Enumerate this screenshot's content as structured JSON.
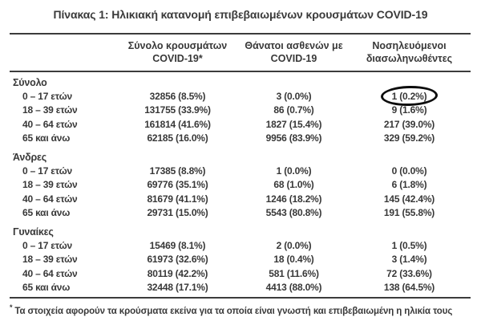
{
  "title": "Πίνακας 1: Ηλικιακή κατανομή επιβεβαιωμένων κρουσμάτων COVID-19",
  "table": {
    "columns": [
      {
        "line1": "Σύνολο κρουσμάτων",
        "line2": "COVID-19*"
      },
      {
        "line1": "Θάνατοι ασθενών με",
        "line2": "COVID-19"
      },
      {
        "line1": "Νοσηλευόμενοι",
        "line2": "διασωληνωθέντες"
      }
    ],
    "sections": [
      {
        "label": "Σύνολο",
        "rows": [
          {
            "age": "0 – 17 ετών",
            "cases": "32856 (8.5%)",
            "deaths": "3 (0.0%)",
            "intubated": "1 (0.2%)",
            "circled": true
          },
          {
            "age": "18 – 39 ετών",
            "cases": "131755 (33.9%)",
            "deaths": "86 (0.7%)",
            "intubated": "9 (1.6%)",
            "circled": false
          },
          {
            "age": "40 – 64 ετών",
            "cases": "161814 (41.6%)",
            "deaths": "1827 (15.4%)",
            "intubated": "217 (39.0%)",
            "circled": false
          },
          {
            "age": "65 και άνω",
            "cases": "62185 (16.0%)",
            "deaths": "9956 (83.9%)",
            "intubated": "329 (59.2%)",
            "circled": false
          }
        ]
      },
      {
        "label": "Άνδρες",
        "rows": [
          {
            "age": "0 – 17 ετών",
            "cases": "17385 (8.8%)",
            "deaths": "1 (0.0%)",
            "intubated": "0 (0.0%)",
            "circled": false
          },
          {
            "age": "18 – 39 ετών",
            "cases": "69776 (35.1%)",
            "deaths": "68 (1.0%)",
            "intubated": "6 (1.8%)",
            "circled": false
          },
          {
            "age": "40 – 64 ετών",
            "cases": "81679 (41.1%)",
            "deaths": "1246 (18.2%)",
            "intubated": "145 (42.4%)",
            "circled": false
          },
          {
            "age": "65 και άνω",
            "cases": "29731 (15.0%)",
            "deaths": "5543 (80.8%)",
            "intubated": "191 (55.8%)",
            "circled": false
          }
        ]
      },
      {
        "label": "Γυναίκες",
        "rows": [
          {
            "age": "0 – 17 ετών",
            "cases": "15469 (8.1%)",
            "deaths": "2 (0.0%)",
            "intubated": "1 (0.5%)",
            "circled": false
          },
          {
            "age": "18 – 39 ετών",
            "cases": "61973 (32.6%)",
            "deaths": "18 (0.4%)",
            "intubated": "3 (1.4%)",
            "circled": false
          },
          {
            "age": "40 – 64 ετών",
            "cases": "80119 (42.2%)",
            "deaths": "581 (11.6%)",
            "intubated": "72 (33.6%)",
            "circled": false
          },
          {
            "age": "65 και άνω",
            "cases": "32448 (17.1%)",
            "deaths": "4413 (88.0%)",
            "intubated": "138 (64.5%)",
            "circled": false
          }
        ]
      }
    ]
  },
  "footnote": {
    "marker": "*",
    "text": "Τα στοιχεία αφορούν τα κρούσματα εκείνα για τα οποία είναι γνωστή και επιβεβαιωμένη η ηλικία τους"
  },
  "annotation": {
    "shape": "hand-drawn-ellipse",
    "color": "#0d0d0d",
    "target": "Σύνολο / 0 – 17 ετών / Νοσηλευόμενοι διασωληνωθέντες"
  },
  "colors": {
    "background": "#ffffff",
    "text": "#383838",
    "rule": "#3c3c3c",
    "ellipse": "#0d0d0d"
  }
}
